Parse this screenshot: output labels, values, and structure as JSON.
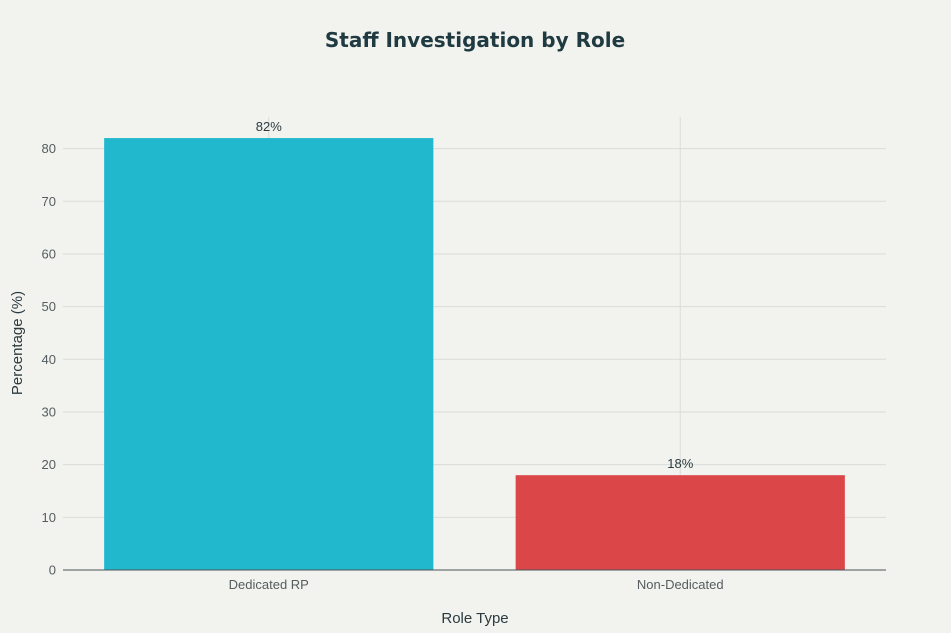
{
  "chart_data": {
    "type": "bar",
    "title": "Staff Investigation by Role",
    "xlabel": "Role Type",
    "ylabel": "Percentage (%)",
    "categories": [
      "Dedicated RP",
      "Non-Dedicated"
    ],
    "values": [
      82,
      18
    ],
    "data_labels": [
      "82%",
      "18%"
    ],
    "colors": [
      "#21b8cd",
      "#db4649"
    ],
    "ylim": [
      0,
      86
    ],
    "yticks": [
      0,
      10,
      20,
      30,
      40,
      50,
      60,
      70,
      80
    ],
    "grid": true,
    "legend": "none"
  }
}
